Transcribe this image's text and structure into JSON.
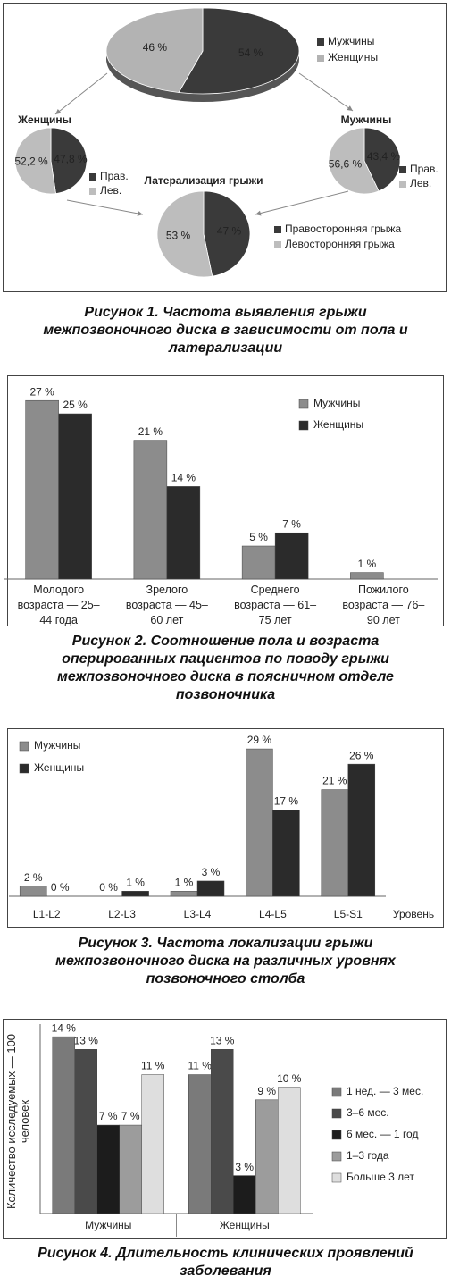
{
  "chart_data": [
    {
      "type": "pie",
      "categories": [
        "Мужчины",
        "Женщины"
      ],
      "values": [
        54,
        46
      ],
      "value_labels": [
        "54 %",
        "46 %"
      ],
      "colors": [
        "#3a3a3a",
        "#b3b3b3"
      ],
      "caption": "Рисунок 1. Частота выявления грыжи межпозвоночного диска в зависимости от пола и латерализации"
    },
    {
      "type": "pie",
      "title": "Женщины",
      "categories": [
        "Прав.",
        "Лев."
      ],
      "values": [
        47.8,
        52.2
      ],
      "value_labels": [
        "47,8 %",
        "52,2 %"
      ],
      "colors": [
        "#3a3a3a",
        "#bdbdbd"
      ]
    },
    {
      "type": "pie",
      "title": "Мужчины",
      "categories": [
        "Прав.",
        "Лев."
      ],
      "values": [
        43.4,
        56.6
      ],
      "value_labels": [
        "43,4 %",
        "56,6 %"
      ],
      "colors": [
        "#3a3a3a",
        "#bdbdbd"
      ]
    },
    {
      "type": "pie",
      "title": "Латерализация грыжи",
      "categories": [
        "Правосторонняя грыжа",
        "Левосторонняя грыжа"
      ],
      "values": [
        47,
        53
      ],
      "value_labels": [
        "47 %",
        "53 %"
      ],
      "colors": [
        "#3a3a3a",
        "#bdbdbd"
      ]
    },
    {
      "type": "bar",
      "categories": [
        "Молодого возраста — 25–44 года",
        "Зрелого возраста — 45–60 лет",
        "Среднего возраста — 61–75 лет",
        "Пожилого возраста — 76–90 лет"
      ],
      "series": [
        {
          "name": "Мужчины",
          "color": "#8c8c8c",
          "values": [
            27,
            21,
            5,
            1
          ],
          "value_labels": [
            "27 %",
            "21 %",
            "5 %",
            "1 %"
          ]
        },
        {
          "name": "Женщины",
          "color": "#2b2b2b",
          "values": [
            25,
            14,
            7,
            null
          ],
          "value_labels": [
            "25 %",
            "14 %",
            "7 %",
            null
          ]
        }
      ],
      "ylim": [
        0,
        30
      ],
      "legend": "top-right",
      "caption": "Рисунок 2. Соотношение пола и возраста оперированных пациентов по поводу грыжи межпозвоночного диска в поясничном отделе позвоночника"
    },
    {
      "type": "bar",
      "categories": [
        "L1-L2",
        "L2-L3",
        "L3-L4",
        "L4-L5",
        "L5-S1"
      ],
      "x_label": "Уровень",
      "series": [
        {
          "name": "Мужчины",
          "color": "#8c8c8c",
          "values": [
            2,
            0,
            1,
            29,
            21
          ],
          "value_labels": [
            "2 %",
            "0 %",
            "1 %",
            "29 %",
            "21 %"
          ]
        },
        {
          "name": "Женщины",
          "color": "#2b2b2b",
          "values": [
            0,
            1,
            3,
            17,
            26
          ],
          "value_labels": [
            "0 %",
            "1 %",
            "3 %",
            "17 %",
            "26 %"
          ]
        }
      ],
      "ylim": [
        0,
        32
      ],
      "legend": "top-left",
      "caption": "Рисунок 3. Частота локализации грыжи межпозвоночного диска на различных уровнях позвоночного столба"
    },
    {
      "type": "bar",
      "categories": [
        "Мужчины",
        "Женщины"
      ],
      "y_label": "Количество исследуемых — 100 человек",
      "series": [
        {
          "name": "1 нед. — 3 мес.",
          "color": "#7a7a7a",
          "values": [
            14,
            11
          ],
          "value_labels": [
            "14 %",
            "11 %"
          ]
        },
        {
          "name": "3–6 мес.",
          "color": "#4a4a4a",
          "values": [
            13,
            13
          ],
          "value_labels": [
            "13 %",
            "13 %"
          ]
        },
        {
          "name": "6 мес. — 1 год",
          "color": "#1c1c1c",
          "values": [
            7,
            3
          ],
          "value_labels": [
            "7 %",
            "3 %"
          ]
        },
        {
          "name": "1–3 года",
          "color": "#9c9c9c",
          "values": [
            7,
            9
          ],
          "value_labels": [
            "7 %",
            "9 %"
          ]
        },
        {
          "name": "Больше 3 лет",
          "color": "#dedede",
          "values": [
            11,
            10
          ],
          "value_labels": [
            "11 %",
            "10 %"
          ]
        }
      ],
      "ylim": [
        0,
        15
      ],
      "legend": "right",
      "caption": "Рисунок 4. Длительность клинических проявлений заболевания"
    }
  ]
}
